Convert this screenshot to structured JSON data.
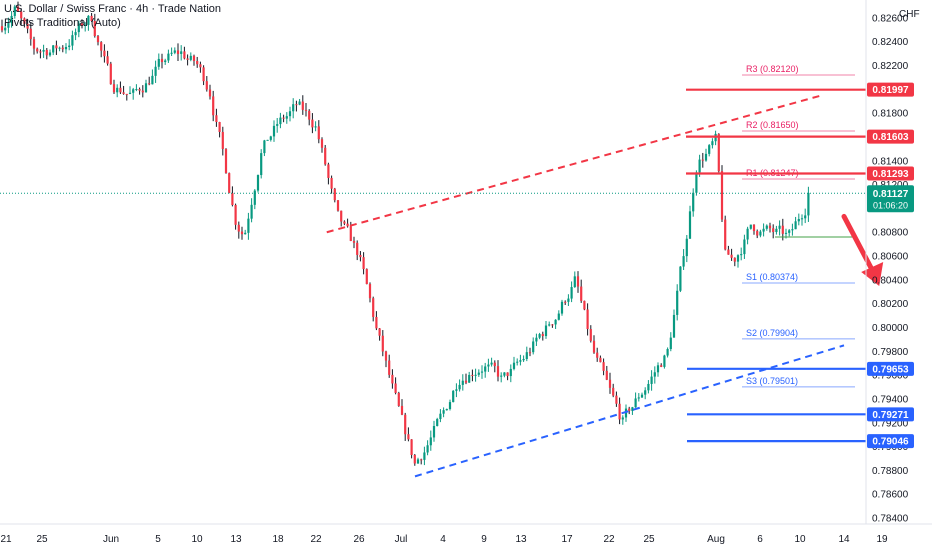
{
  "header": {
    "title": "U.S. Dollar / Swiss Franc · 4h · Trade Nation",
    "indicator": "Pivots Traditional (Auto)",
    "currency": "CHF"
  },
  "colors": {
    "up": "#089981",
    "down": "#f23645",
    "wick": "#131722",
    "resistance": "#f23645",
    "support": "#2962ff",
    "pivot_r": "#e91e63",
    "pivot_s": "#2962ff",
    "pivot_p": "#43a047",
    "last_price": "#089981"
  },
  "chart_data": {
    "type": "candlestick",
    "title": "U.S. Dollar / Swiss Franc · 4h · Trade Nation",
    "y_axis": {
      "ticks": [
        "0.82600",
        "0.82400",
        "0.82200",
        "0.82000",
        "0.81800",
        "0.81600",
        "0.81400",
        "0.81200",
        "0.81000",
        "0.80800",
        "0.80600",
        "0.80400",
        "0.80200",
        "0.80000",
        "0.79800",
        "0.79600",
        "0.79400",
        "0.79200",
        "0.79000",
        "0.78800",
        "0.78600",
        "0.78400"
      ],
      "range": [
        0.7835,
        0.8275
      ]
    },
    "x_axis": {
      "ticks": [
        "21",
        "25",
        "Jun",
        "5",
        "10",
        "13",
        "18",
        "22",
        "26",
        "Jul",
        "4",
        "9",
        "13",
        "17",
        "22",
        "25",
        "Aug",
        "6",
        "10",
        "14",
        "19"
      ]
    },
    "close_path": [
      [
        "2025-05-20",
        0.825
      ],
      [
        "2025-05-22",
        0.8268
      ],
      [
        "2025-05-24",
        0.8232
      ],
      [
        "2025-05-27",
        0.8235
      ],
      [
        "2025-05-30",
        0.8261
      ],
      [
        "2025-06-01",
        0.8205
      ],
      [
        "2025-06-03",
        0.8195
      ],
      [
        "2025-06-06",
        0.8225
      ],
      [
        "2025-06-08",
        0.823
      ],
      [
        "2025-06-10",
        0.822
      ],
      [
        "2025-06-11",
        0.82
      ],
      [
        "2025-06-13",
        0.809
      ],
      [
        "2025-06-14",
        0.808
      ],
      [
        "2025-06-16",
        0.815
      ],
      [
        "2025-06-18",
        0.817
      ],
      [
        "2025-06-20",
        0.8185
      ],
      [
        "2025-06-22",
        0.817
      ],
      [
        "2025-06-24",
        0.809
      ],
      [
        "2025-06-26",
        0.806
      ],
      [
        "2025-06-28",
        0.8
      ],
      [
        "2025-07-01",
        0.792
      ],
      [
        "2025-07-02",
        0.7885
      ],
      [
        "2025-07-04",
        0.7925
      ],
      [
        "2025-07-06",
        0.796
      ],
      [
        "2025-07-09",
        0.797
      ],
      [
        "2025-07-11",
        0.7955
      ],
      [
        "2025-07-13",
        0.797
      ],
      [
        "2025-07-16",
        0.801
      ],
      [
        "2025-07-18",
        0.804
      ],
      [
        "2025-07-20",
        0.798
      ],
      [
        "2025-07-22",
        0.7945
      ],
      [
        "2025-07-23",
        0.792
      ],
      [
        "2025-07-25",
        0.7955
      ],
      [
        "2025-07-27",
        0.798
      ],
      [
        "2025-07-29",
        0.808
      ],
      [
        "2025-07-30",
        0.814
      ],
      [
        "2025-08-01",
        0.8155
      ],
      [
        "2025-08-02",
        0.806
      ],
      [
        "2025-08-03",
        0.8055
      ],
      [
        "2025-08-05",
        0.8085
      ],
      [
        "2025-08-07",
        0.808
      ],
      [
        "2025-08-09",
        0.8075
      ],
      [
        "2025-08-11",
        0.8113
      ]
    ],
    "last_price": "0.81127",
    "countdown": "01:06:20",
    "levels": [
      {
        "label": "0.81997",
        "value": 0.81997,
        "kind": "resistance"
      },
      {
        "label": "0.81603",
        "value": 0.81603,
        "kind": "resistance"
      },
      {
        "label": "0.81293",
        "value": 0.81293,
        "kind": "resistance"
      },
      {
        "label": "0.79653",
        "value": 0.79653,
        "kind": "support"
      },
      {
        "label": "0.79271",
        "value": 0.79271,
        "kind": "support"
      },
      {
        "label": "0.79046",
        "value": 0.79046,
        "kind": "support"
      }
    ],
    "pivots": [
      {
        "label": "R3 (0.82120)",
        "value": 0.8212,
        "kind": "r"
      },
      {
        "label": "R2 (0.81650)",
        "value": 0.8165,
        "kind": "r"
      },
      {
        "label": "R1 (0.81247)",
        "value": 0.81247,
        "kind": "r"
      },
      {
        "label": "",
        "value": 0.8076,
        "kind": "p"
      },
      {
        "label": "S1 (0.80374)",
        "value": 0.80374,
        "kind": "s"
      },
      {
        "label": "S2 (0.79904)",
        "value": 0.79904,
        "kind": "s"
      },
      {
        "label": "S3 (0.79501)",
        "value": 0.79501,
        "kind": "s"
      }
    ],
    "trendlines": [
      {
        "kind": "resistance",
        "from": [
          "2025-06-23",
          0.808
        ],
        "to": [
          "2025-08-12",
          0.8195
        ]
      },
      {
        "kind": "support",
        "from": [
          "2025-07-02",
          0.7875
        ],
        "to": [
          "2025-08-14",
          0.7985
        ]
      }
    ],
    "forecast_arrow": {
      "from": [
        "2025-08-12",
        0.81
      ],
      "to": [
        "2025-08-16",
        0.805
      ]
    },
    "grid": false
  }
}
